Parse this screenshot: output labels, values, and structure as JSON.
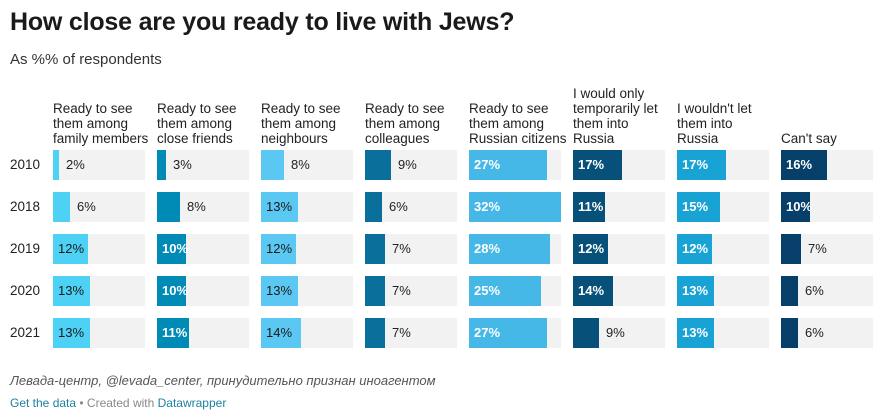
{
  "title": "How close are you ready to live with Jews?",
  "subtitle": "As %% of respondents",
  "source": "Левада-центр, @levada_center, принудительно признан иноагентом",
  "footer": {
    "get_data": "Get the data",
    "sep": " • Created with ",
    "datawrapper": "Datawrapper"
  },
  "colors": [
    "#4dd1f5",
    "#008bb6",
    "#5bc8f3",
    "#0b6f9c",
    "#45b8e8",
    "#07507a",
    "#19a3d4",
    "#053f6a"
  ],
  "chart_data": {
    "type": "bar",
    "title": "How close are you ready to live with Jews?",
    "subtitle": "As %% of respondents",
    "categories": [
      "2010",
      "2018",
      "2019",
      "2020",
      "2021"
    ],
    "max_value": 32,
    "series": [
      {
        "name": "Ready to see them among family members",
        "values": [
          2,
          6,
          12,
          13,
          13
        ]
      },
      {
        "name": "Ready to see them among close friends",
        "values": [
          3,
          8,
          10,
          10,
          11
        ]
      },
      {
        "name": "Ready to see them among neighbours",
        "values": [
          8,
          13,
          12,
          13,
          14
        ]
      },
      {
        "name": "Ready to see them among colleagues",
        "values": [
          9,
          6,
          7,
          7,
          7
        ]
      },
      {
        "name": "Ready to see them among Russian citizens",
        "values": [
          27,
          32,
          28,
          25,
          27
        ]
      },
      {
        "name": "I would only temporarily let them into Russia",
        "values": [
          17,
          11,
          12,
          14,
          9
        ]
      },
      {
        "name": "I wouldn't let them into Russia",
        "values": [
          17,
          15,
          12,
          13,
          13
        ]
      },
      {
        "name": "Can't say",
        "values": [
          16,
          10,
          7,
          6,
          6
        ]
      }
    ]
  }
}
